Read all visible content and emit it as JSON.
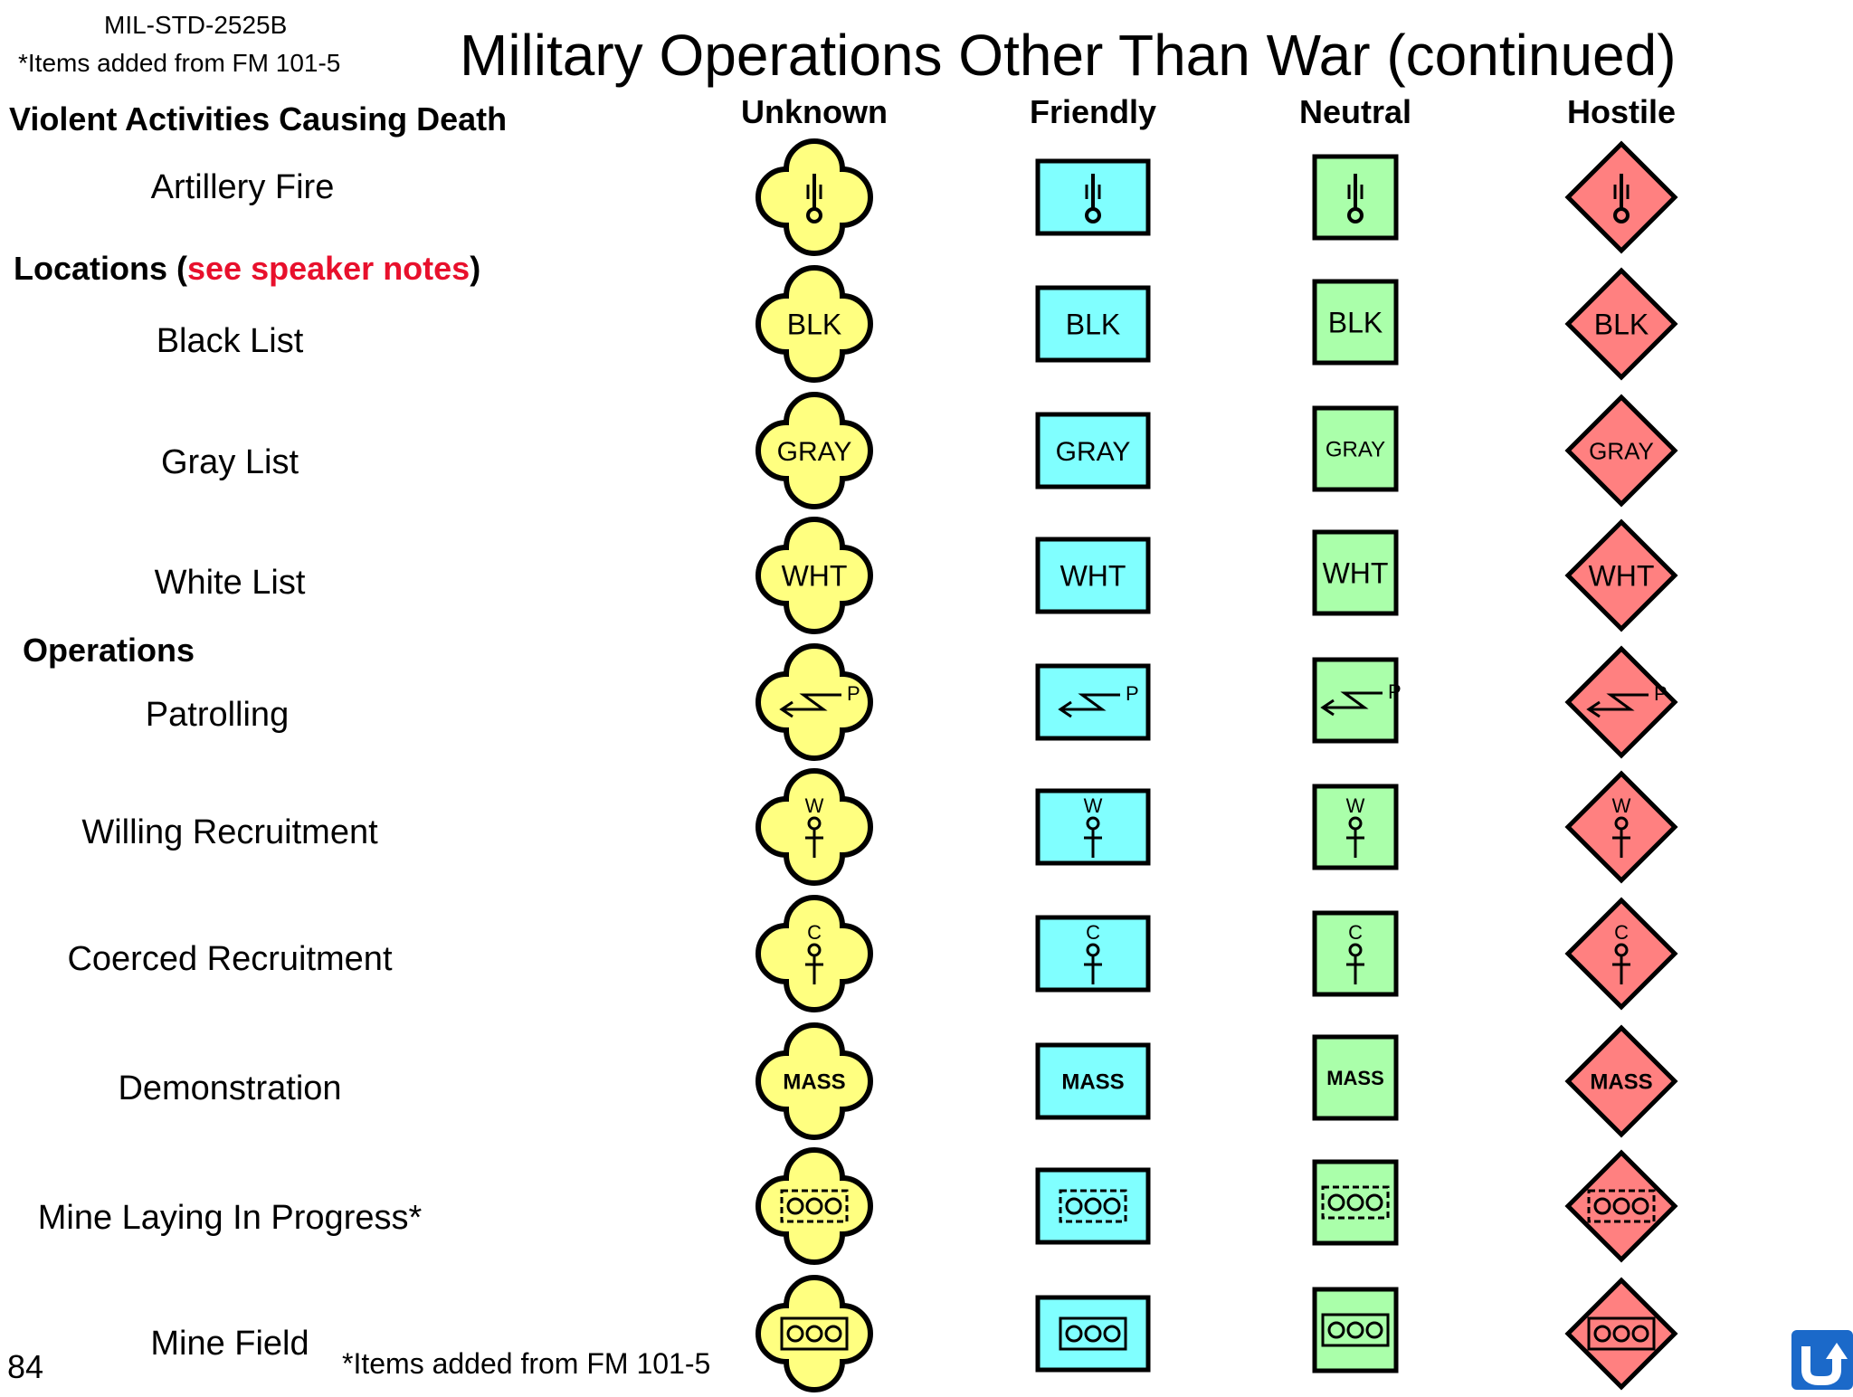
{
  "header": {
    "std_line1": "MIL-STD-2525B",
    "std_line2": "*Items added from FM 101-5",
    "title": "Military Operations Other Than War (continued)"
  },
  "columns": [
    "Unknown",
    "Friendly",
    "Neutral",
    "Hostile"
  ],
  "colors": {
    "unknown": "#ffff80",
    "friendly": "#80ffff",
    "neutral": "#aaffaa",
    "hostile": "#ff8080",
    "stroke": "#000000",
    "accent": "#e8102c",
    "back_button": "#1b69c9"
  },
  "sections": {
    "violent": "Violent Activities Causing Death",
    "locations_prefix": "Locations (",
    "locations_note": "see speaker notes",
    "locations_suffix": ")",
    "operations": "Operations"
  },
  "rows": [
    {
      "label": "Artillery Fire",
      "glyph": "artillery-icon",
      "text": ""
    },
    {
      "label": "Black List",
      "glyph": "text",
      "text": "BLK"
    },
    {
      "label": "Gray List",
      "glyph": "text",
      "text": "GRAY"
    },
    {
      "label": "White List",
      "glyph": "text",
      "text": "WHT"
    },
    {
      "label": "Patrolling",
      "glyph": "patrol-icon",
      "text": "P"
    },
    {
      "label": "Willing Recruitment",
      "glyph": "recruit-icon",
      "text": "W"
    },
    {
      "label": "Coerced Recruitment",
      "glyph": "recruit-icon",
      "text": "C"
    },
    {
      "label": "Demonstration",
      "glyph": "text-bold",
      "text": "MASS"
    },
    {
      "label": "Mine Laying In Progress*",
      "glyph": "mine-dashed-icon",
      "text": ""
    },
    {
      "label": "Mine Field",
      "glyph": "mine-solid-icon",
      "text": ""
    }
  ],
  "footer": {
    "page_number": "84",
    "note": "*Items added from FM 101-5",
    "back_icon": "back-arrow-icon"
  }
}
